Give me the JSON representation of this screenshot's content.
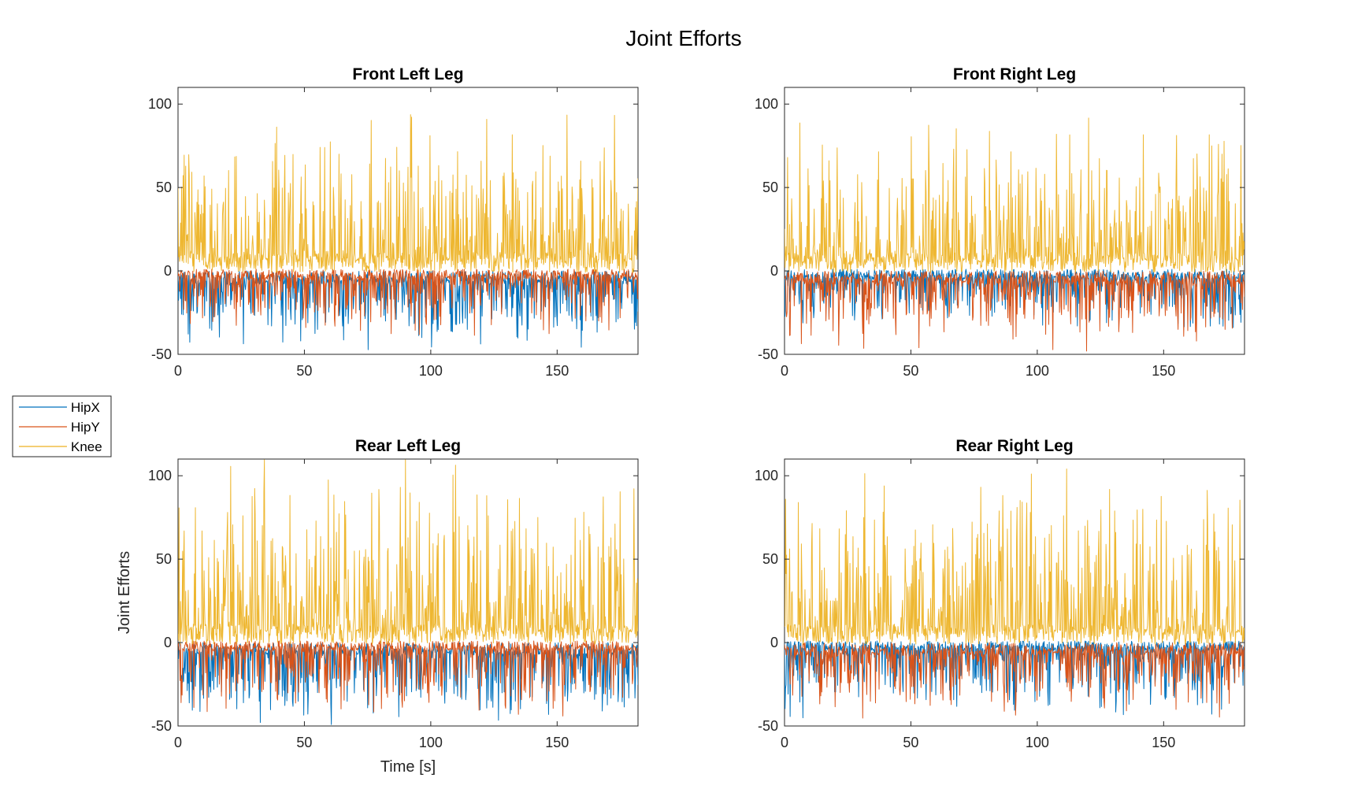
{
  "figure": {
    "title": "Joint Efforts",
    "legend": {
      "placement": "left",
      "entries": [
        {
          "name": "HipX",
          "color": "#0072BD"
        },
        {
          "name": "HipY",
          "color": "#D95319"
        },
        {
          "name": "Knee",
          "color": "#EDB120"
        }
      ]
    }
  },
  "chart_data": [
    {
      "type": "line",
      "title": "Front Left Leg",
      "xlabel": "",
      "ylabel": "",
      "xlim": [
        0,
        182
      ],
      "ylim": [
        -50,
        110
      ],
      "xticks": [
        0,
        50,
        100,
        150
      ],
      "yticks": [
        -50,
        0,
        50,
        100
      ],
      "grid": false,
      "series": [
        {
          "name": "HipX",
          "color": "#0072BD",
          "profile": {
            "base": -4,
            "spike_dir": -1,
            "amp": 45,
            "noise": 4
          }
        },
        {
          "name": "HipY",
          "color": "#D95319",
          "profile": {
            "base": -2,
            "spike_dir": -1,
            "amp": 40,
            "noise": 3
          }
        },
        {
          "name": "Knee",
          "color": "#EDB120",
          "profile": {
            "base": 5,
            "spike_dir": 1,
            "amp": 95,
            "noise": 6
          }
        }
      ]
    },
    {
      "type": "line",
      "title": "Front Right Leg",
      "xlabel": "",
      "ylabel": "",
      "xlim": [
        0,
        182
      ],
      "ylim": [
        -50,
        110
      ],
      "xticks": [
        0,
        50,
        100,
        150
      ],
      "yticks": [
        -50,
        0,
        50,
        100
      ],
      "grid": false,
      "series": [
        {
          "name": "HipX",
          "color": "#0072BD",
          "profile": {
            "base": -2,
            "spike_dir": -1,
            "amp": 35,
            "noise": 3
          }
        },
        {
          "name": "HipY",
          "color": "#D95319",
          "profile": {
            "base": -4,
            "spike_dir": -1,
            "amp": 48,
            "noise": 4
          }
        },
        {
          "name": "Knee",
          "color": "#EDB120",
          "profile": {
            "base": 5,
            "spike_dir": 1,
            "amp": 90,
            "noise": 6
          }
        }
      ]
    },
    {
      "type": "line",
      "title": "Rear Left Leg",
      "xlabel": "Time [s]",
      "ylabel": "Joint Efforts",
      "xlim": [
        0,
        182
      ],
      "ylim": [
        -50,
        110
      ],
      "xticks": [
        0,
        50,
        100,
        150
      ],
      "yticks": [
        -50,
        0,
        50,
        100
      ],
      "grid": false,
      "series": [
        {
          "name": "HipX",
          "color": "#0072BD",
          "profile": {
            "base": -4,
            "spike_dir": -1,
            "amp": 48,
            "noise": 4
          }
        },
        {
          "name": "HipY",
          "color": "#D95319",
          "profile": {
            "base": -2,
            "spike_dir": -1,
            "amp": 45,
            "noise": 3
          }
        },
        {
          "name": "Knee",
          "color": "#EDB120",
          "profile": {
            "base": 5,
            "spike_dir": 1,
            "amp": 110,
            "noise": 6
          }
        }
      ]
    },
    {
      "type": "line",
      "title": "Rear Right Leg",
      "xlabel": "",
      "ylabel": "",
      "xlim": [
        0,
        182
      ],
      "ylim": [
        -50,
        110
      ],
      "xticks": [
        0,
        50,
        100,
        150
      ],
      "yticks": [
        -50,
        0,
        50,
        100
      ],
      "grid": false,
      "series": [
        {
          "name": "HipX",
          "color": "#0072BD",
          "profile": {
            "base": -2,
            "spike_dir": -1,
            "amp": 45,
            "noise": 3
          }
        },
        {
          "name": "HipY",
          "color": "#D95319",
          "profile": {
            "base": -4,
            "spike_dir": -1,
            "amp": 42,
            "noise": 4
          }
        },
        {
          "name": "Knee",
          "color": "#EDB120",
          "profile": {
            "base": 5,
            "spike_dir": 1,
            "amp": 100,
            "noise": 6
          }
        }
      ]
    }
  ]
}
